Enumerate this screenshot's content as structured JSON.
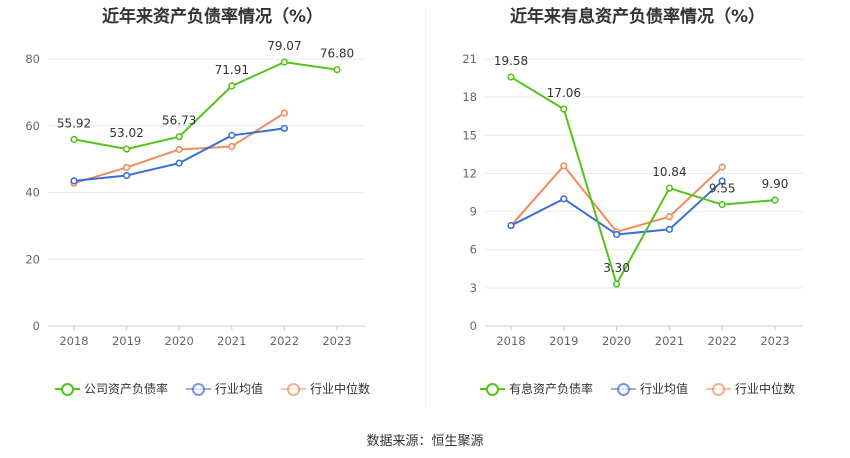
{
  "source_text": "数据来源：恒生聚源",
  "chart_data": [
    {
      "type": "line",
      "title": "近年来资产负债率情况（%）",
      "categories": [
        "2018",
        "2019",
        "2020",
        "2021",
        "2022",
        "2023"
      ],
      "ylim": [
        0,
        80
      ],
      "yticks": [
        0,
        20,
        40,
        60,
        80
      ],
      "grid": true,
      "legend_position": "bottom",
      "series": [
        {
          "name": "公司资产负债率",
          "color": "#52c41a",
          "values": [
            55.92,
            53.02,
            56.73,
            71.91,
            79.07,
            76.8
          ],
          "labels": [
            "55.92",
            "53.02",
            "56.73",
            "71.91",
            "79.07",
            "76.80"
          ]
        },
        {
          "name": "行业均值",
          "color": "#3b6fd6",
          "values": [
            43.5,
            45.1,
            48.8,
            57.1,
            59.2,
            null
          ],
          "labels": null
        },
        {
          "name": "行业中位数",
          "color": "#f08c5e",
          "values": [
            42.8,
            47.5,
            52.9,
            53.8,
            63.8,
            null
          ],
          "labels": null
        }
      ]
    },
    {
      "type": "line",
      "title": "近年来有息资产负债率情况（%）",
      "categories": [
        "2018",
        "2019",
        "2020",
        "2021",
        "2022",
        "2023"
      ],
      "ylim": [
        0,
        21
      ],
      "yticks": [
        0,
        3,
        6,
        9,
        12,
        15,
        18,
        21
      ],
      "grid": true,
      "legend_position": "bottom",
      "series": [
        {
          "name": "有息资产负债率",
          "color": "#52c41a",
          "values": [
            19.58,
            17.06,
            3.3,
            10.84,
            9.55,
            9.9
          ],
          "labels": [
            "19.58",
            "17.06",
            "3.30",
            "10.84",
            "9.55",
            "9.90"
          ]
        },
        {
          "name": "行业均值",
          "color": "#3b6fd6",
          "values": [
            7.9,
            10.0,
            7.2,
            7.6,
            11.4,
            null
          ],
          "labels": null
        },
        {
          "name": "行业中位数",
          "color": "#f08c5e",
          "values": [
            7.9,
            12.6,
            7.4,
            8.6,
            12.5,
            null
          ],
          "labels": null
        }
      ]
    }
  ]
}
